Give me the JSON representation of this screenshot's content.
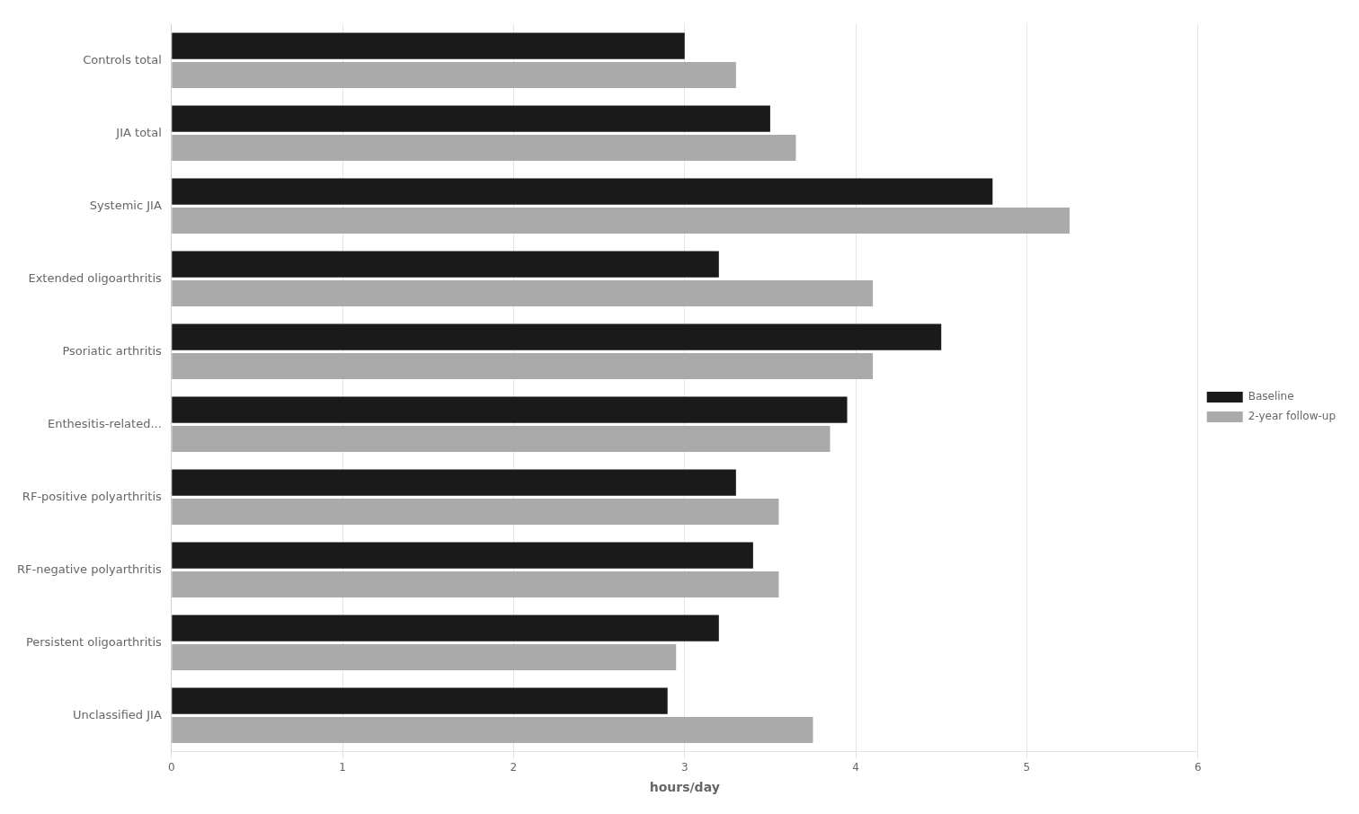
{
  "chart_data": {
    "type": "bar",
    "orientation": "horizontal",
    "categories": [
      "Controls total",
      "JIA total",
      "Systemic JIA",
      "Extended oligoarthritis",
      "Psoriatic arthritis",
      "Enthesitis-related...",
      "RF-positive polyarthritis",
      "RF-negative polyarthritis",
      "Persistent oligoarthritis",
      "Unclassified JIA"
    ],
    "series": [
      {
        "name": "Baseline",
        "color": "#1a1a1a",
        "values": [
          3.0,
          3.5,
          4.8,
          3.2,
          4.5,
          3.95,
          3.3,
          3.4,
          3.2,
          2.9
        ]
      },
      {
        "name": "2-year follow-up",
        "color": "#aaaaaa",
        "values": [
          3.3,
          3.65,
          5.25,
          4.1,
          4.1,
          3.85,
          3.55,
          3.55,
          2.95,
          3.75
        ]
      }
    ],
    "xlabel": "hours/day",
    "xlim": [
      0,
      6
    ],
    "xticks": [
      0,
      1,
      2,
      3,
      4,
      5,
      6
    ],
    "grid": true,
    "legend": "right"
  }
}
